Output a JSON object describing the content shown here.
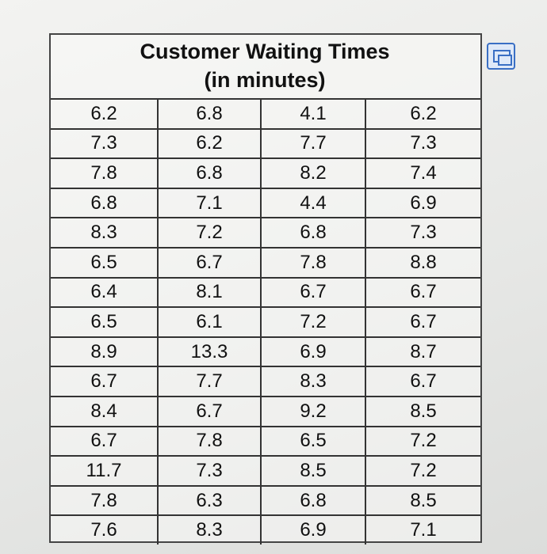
{
  "table": {
    "title": "Customer Waiting Times",
    "subtitle": "(in minutes)",
    "rows": [
      [
        "6.2",
        "6.8",
        "4.1",
        "6.2"
      ],
      [
        "7.3",
        "6.2",
        "7.7",
        "7.3"
      ],
      [
        "7.8",
        "6.8",
        "8.2",
        "7.4"
      ],
      [
        "6.8",
        "7.1",
        "4.4",
        "6.9"
      ],
      [
        "8.3",
        "7.2",
        "6.8",
        "7.3"
      ],
      [
        "6.5",
        "6.7",
        "7.8",
        "8.8"
      ],
      [
        "6.4",
        "8.1",
        "6.7",
        "6.7"
      ],
      [
        "6.5",
        "6.1",
        "7.2",
        "6.7"
      ],
      [
        "8.9",
        "13.3",
        "6.9",
        "8.7"
      ],
      [
        "6.7",
        "7.7",
        "8.3",
        "6.7"
      ],
      [
        "8.4",
        "6.7",
        "9.2",
        "8.5"
      ],
      [
        "6.7",
        "7.8",
        "6.5",
        "7.2"
      ],
      [
        "11.7",
        "7.3",
        "8.5",
        "7.2"
      ],
      [
        "7.8",
        "6.3",
        "6.8",
        "8.5"
      ],
      [
        "7.6",
        "8.3",
        "6.9",
        "7.1"
      ]
    ]
  }
}
